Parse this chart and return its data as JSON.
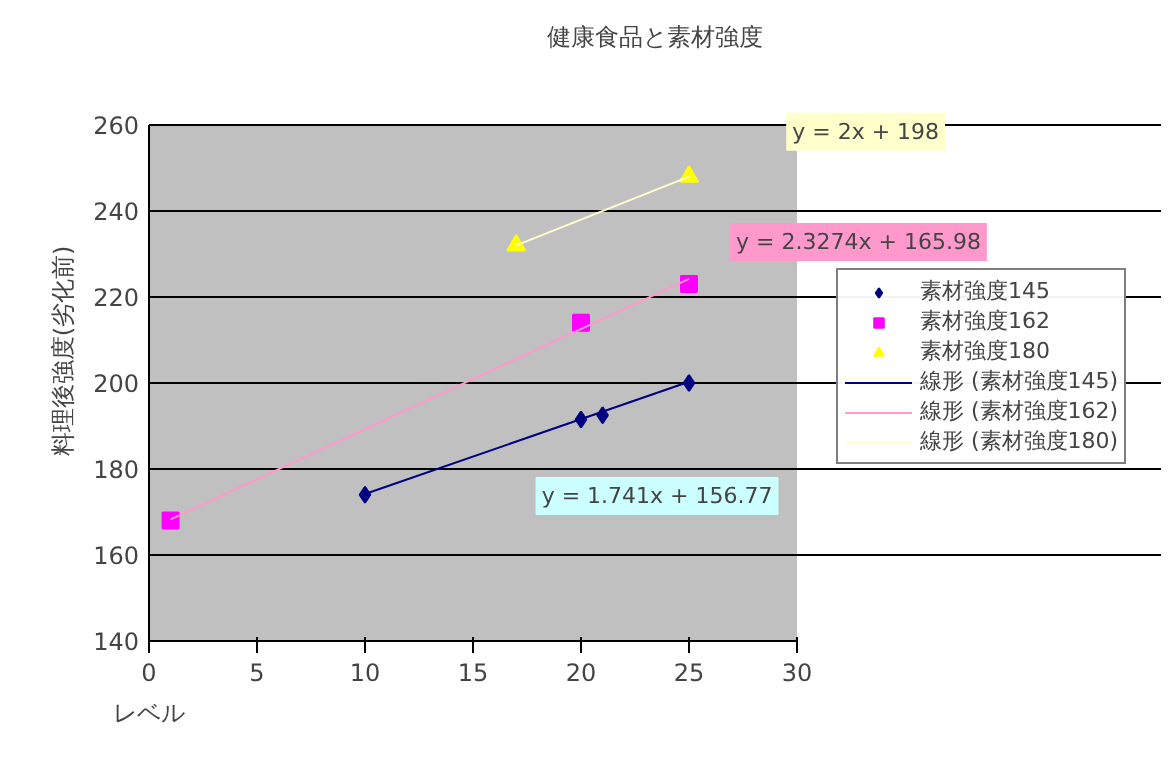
{
  "chart_data": {
    "type": "scatter",
    "title": "健康食品と素材強度",
    "xlabel": "レベル",
    "ylabel": "料理後強度(劣化前)",
    "xlim": [
      0,
      30
    ],
    "xticks": [
      0,
      5,
      10,
      15,
      20,
      25,
      30
    ],
    "ylim": [
      140,
      260
    ],
    "yticks": [
      140,
      160,
      180,
      200,
      220,
      240,
      260
    ],
    "grid": "y",
    "legend": "right",
    "series": [
      {
        "name": "素材強度145",
        "marker": "diamond",
        "color": "#000080",
        "x": [
          10,
          20,
          21,
          25
        ],
        "values": [
          174,
          191.5,
          192.5,
          200
        ]
      },
      {
        "name": "素材強度162",
        "marker": "square",
        "color": "#ff00ff",
        "x": [
          1,
          20,
          25
        ],
        "values": [
          168,
          214,
          223
        ]
      },
      {
        "name": "素材強度180",
        "marker": "triangle",
        "color": "#ffff00",
        "x": [
          17,
          25
        ],
        "values": [
          232,
          248
        ]
      },
      {
        "name": "線形 (素材強度145)",
        "type": "line",
        "color": "#000080",
        "x": [
          10,
          25
        ],
        "values": [
          174.2,
          200.3
        ]
      },
      {
        "name": "線形 (素材強度162)",
        "type": "line",
        "color": "#ff99cc",
        "x": [
          1,
          25
        ],
        "values": [
          168.3,
          224.2
        ]
      },
      {
        "name": "線形 (素材強度180)",
        "type": "line",
        "color": "#ffffcc",
        "x": [
          17,
          25
        ],
        "values": [
          232,
          248
        ]
      }
    ],
    "annotations": [
      "y = 1.741x + 156.77",
      "y = 2.3274x + 165.98",
      "y = 2x + 198"
    ]
  }
}
